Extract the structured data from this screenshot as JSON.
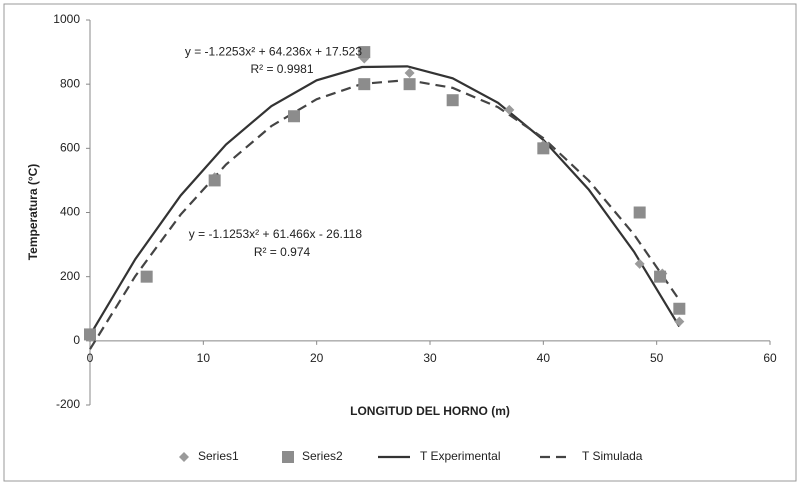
{
  "chart_data": {
    "type": "scatter",
    "x_label": "LONGITUD DEL HORNO (m)",
    "y_label": "Temperatura (°C)",
    "xlim": [
      0,
      60
    ],
    "xticks": [
      0,
      10,
      20,
      30,
      40,
      50,
      60
    ],
    "ylim": [
      -200,
      1000
    ],
    "yticks": [
      -200,
      0,
      200,
      400,
      600,
      800,
      1000
    ],
    "grid": false,
    "legend": "bottom",
    "series": [
      {
        "name": "Series1",
        "type": "scatter",
        "marker": "diamond",
        "color": "#9a9a9a",
        "x": [
          0,
          11,
          24.2,
          28.2,
          37,
          40,
          48.5,
          50.5,
          52
        ],
        "values": [
          10,
          510,
          880,
          835,
          720,
          610,
          240,
          210,
          60
        ]
      },
      {
        "name": "Series2",
        "type": "scatter",
        "marker": "square",
        "color": "#8c8c8c",
        "x": [
          0,
          5,
          11,
          18,
          24.2,
          24.2,
          28.2,
          32,
          40,
          48.5,
          50.3,
          52
        ],
        "values": [
          20,
          200,
          500,
          700,
          800,
          900,
          800,
          750,
          600,
          400,
          200,
          100
        ]
      },
      {
        "name": "T Experimental",
        "type": "line",
        "dash": false,
        "color": "#333333",
        "x": [
          0,
          4,
          8,
          12,
          16,
          20,
          24,
          28,
          32,
          36,
          40,
          44,
          48,
          52
        ],
        "values": [
          17.5,
          254.8,
          453.0,
          611.9,
          731.6,
          812.1,
          853.4,
          855.5,
          818.4,
          742.0,
          626.4,
          471.7,
          277.7,
          44.6
        ]
      },
      {
        "name": "T Simulada",
        "type": "line",
        "dash": true,
        "color": "#444444",
        "x": [
          0,
          4,
          8,
          12,
          16,
          20,
          24,
          28,
          32,
          36,
          40,
          44,
          48,
          52
        ],
        "values": [
          -26.1,
          201.8,
          393.6,
          549.5,
          669.3,
          753.1,
          800.9,
          812.7,
          788.5,
          728.3,
          632.0,
          499.8,
          331.6,
          127.3
        ]
      }
    ],
    "annotations": [
      {
        "text": "y = -1.2253x² + 64.236x + 17.523",
        "x": 24,
        "y": 900
      },
      {
        "text": "R² = 0.9981",
        "x": 24,
        "y": 845
      },
      {
        "text": "y = -1.1253x² + 61.466x - 26.118",
        "x": 24,
        "y": 330
      },
      {
        "text": "R² = 0.974",
        "x": 24,
        "y": 275
      }
    ]
  }
}
